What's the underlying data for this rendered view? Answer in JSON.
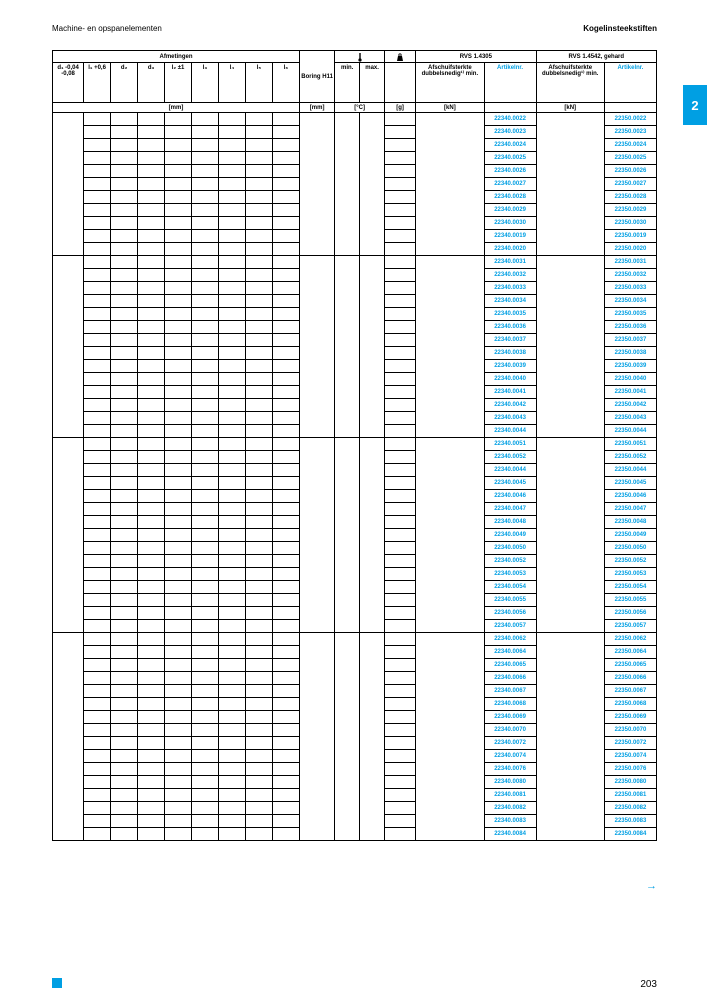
{
  "header": {
    "left": "Machine- en opspanelementen",
    "right": "Kogelinsteekstiften"
  },
  "side_tab": "2",
  "page_number": "203",
  "continuation_arrow": "→",
  "colors": {
    "accent": "#009fe3",
    "border": "#000000",
    "text": "#000000",
    "background": "#ffffff"
  },
  "table": {
    "group_headers": {
      "afmetingen": "Afmetingen",
      "boring": "Boring H11",
      "rvs1": "RVS 1.4305",
      "rvs2": "RVS 1.4542, gehard"
    },
    "sub_headers": {
      "d1": "d₁ -0,04 -0,08",
      "l1": "l₁ +0,6",
      "d2": "d₂",
      "d3": "d₃",
      "l2": "l₂ ±1",
      "l3": "l₃",
      "l4": "l₄",
      "l5": "l₅",
      "l6": "l₆",
      "min": "min.",
      "max": "max.",
      "afschuif1": "Afschuifsterkte dubbelsnedig¹⁾ min.",
      "artikel1": "Artikelnr.",
      "afschuif2": "Afschuifsterkte dubbelsnedig¹⁾ min.",
      "artikel2": "Artikelnr."
    },
    "unit_row": {
      "mm1": "[mm]",
      "mm2": "[mm]",
      "degC": "[°C]",
      "g": "[g]",
      "kN1": "[kN]",
      "kN2": "[kN]"
    },
    "icons": {
      "temp": "thermometer",
      "weight": "weight"
    }
  },
  "groups": [
    {
      "rowspan": 11,
      "rows": [
        {
          "art1": "22340.0022",
          "art2": "22350.0022"
        },
        {
          "art1": "22340.0023",
          "art2": "22350.0023"
        },
        {
          "art1": "22340.0024",
          "art2": "22350.0024"
        },
        {
          "art1": "22340.0025",
          "art2": "22350.0025"
        },
        {
          "art1": "22340.0026",
          "art2": "22350.0026"
        },
        {
          "art1": "22340.0027",
          "art2": "22350.0027"
        },
        {
          "art1": "22340.0028",
          "art2": "22350.0028"
        },
        {
          "art1": "22340.0029",
          "art2": "22350.0029"
        },
        {
          "art1": "22340.0030",
          "art2": "22350.0030"
        },
        {
          "art1": "22340.0019",
          "art2": "22350.0019"
        },
        {
          "art1": "22340.0020",
          "art2": "22350.0020"
        }
      ]
    },
    {
      "rowspan": 14,
      "rows": [
        {
          "art1": "22340.0031",
          "art2": "22350.0031"
        },
        {
          "art1": "22340.0032",
          "art2": "22350.0032"
        },
        {
          "art1": "22340.0033",
          "art2": "22350.0033"
        },
        {
          "art1": "22340.0034",
          "art2": "22350.0034"
        },
        {
          "art1": "22340.0035",
          "art2": "22350.0035"
        },
        {
          "art1": "22340.0036",
          "art2": "22350.0036"
        },
        {
          "art1": "22340.0037",
          "art2": "22350.0037"
        },
        {
          "art1": "22340.0038",
          "art2": "22350.0038"
        },
        {
          "art1": "22340.0039",
          "art2": "22350.0039"
        },
        {
          "art1": "22340.0040",
          "art2": "22350.0040"
        },
        {
          "art1": "22340.0041",
          "art2": "22350.0041"
        },
        {
          "art1": "22340.0042",
          "art2": "22350.0042"
        },
        {
          "art1": "22340.0043",
          "art2": "22350.0043"
        },
        {
          "art1": "22340.0044",
          "art2": "22350.0044"
        }
      ]
    },
    {
      "rowspan": 15,
      "rows": [
        {
          "art1": "22340.0051",
          "art2": "22350.0051"
        },
        {
          "art1": "22340.0052",
          "art2": "22350.0052"
        },
        {
          "art1": "22340.0044",
          "art2": "22350.0044"
        },
        {
          "art1": "22340.0045",
          "art2": "22350.0045"
        },
        {
          "art1": "22340.0046",
          "art2": "22350.0046"
        },
        {
          "art1": "22340.0047",
          "art2": "22350.0047"
        },
        {
          "art1": "22340.0048",
          "art2": "22350.0048"
        },
        {
          "art1": "22340.0049",
          "art2": "22350.0049"
        },
        {
          "art1": "22340.0050",
          "art2": "22350.0050"
        },
        {
          "art1": "22340.0052",
          "art2": "22350.0052"
        },
        {
          "art1": "22340.0053",
          "art2": "22350.0053"
        },
        {
          "art1": "22340.0054",
          "art2": "22350.0054"
        },
        {
          "art1": "22340.0055",
          "art2": "22350.0055"
        },
        {
          "art1": "22340.0056",
          "art2": "22350.0056"
        },
        {
          "art1": "22340.0057",
          "art2": "22350.0057"
        }
      ]
    },
    {
      "rowspan": 16,
      "rows": [
        {
          "art1": "22340.0062",
          "art2": "22350.0062"
        },
        {
          "art1": "22340.0064",
          "art2": "22350.0064"
        },
        {
          "art1": "22340.0065",
          "art2": "22350.0065"
        },
        {
          "art1": "22340.0066",
          "art2": "22350.0066"
        },
        {
          "art1": "22340.0067",
          "art2": "22350.0067"
        },
        {
          "art1": "22340.0068",
          "art2": "22350.0068"
        },
        {
          "art1": "22340.0069",
          "art2": "22350.0069"
        },
        {
          "art1": "22340.0070",
          "art2": "22350.0070"
        },
        {
          "art1": "22340.0072",
          "art2": "22350.0072"
        },
        {
          "art1": "22340.0074",
          "art2": "22350.0074"
        },
        {
          "art1": "22340.0076",
          "art2": "22350.0076"
        },
        {
          "art1": "22340.0080",
          "art2": "22350.0080"
        },
        {
          "art1": "22340.0081",
          "art2": "22350.0081"
        },
        {
          "art1": "22340.0082",
          "art2": "22350.0082"
        },
        {
          "art1": "22340.0083",
          "art2": "22350.0083"
        },
        {
          "art1": "22340.0084",
          "art2": "22350.0084"
        }
      ]
    }
  ]
}
